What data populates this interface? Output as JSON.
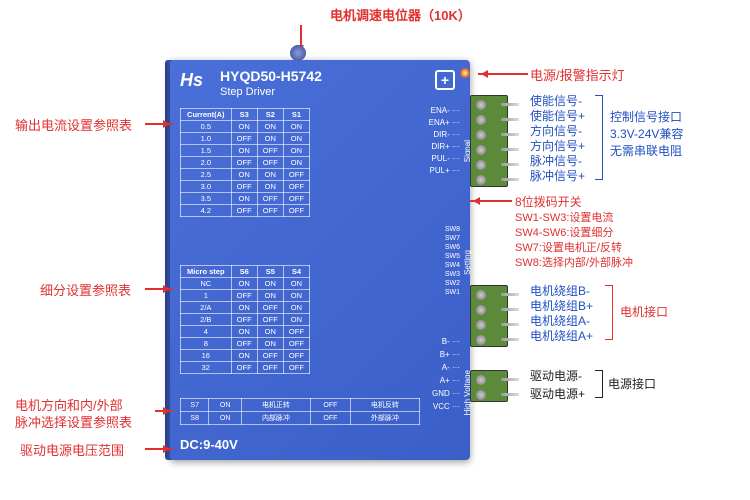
{
  "header": {
    "top_label": "电机调速电位器（10K）",
    "model": "HYQD50-H5742",
    "subtitle": "Step Driver",
    "logo": "Hs",
    "plus": "+"
  },
  "left_callouts": {
    "current_table": "输出电流设置参照表",
    "micro_table": "细分设置参照表",
    "dir_table_l1": "电机方向和内/外部",
    "dir_table_l2": "脉冲选择设置参照表",
    "dc_range": "驱动电源电压范围"
  },
  "right_callouts": {
    "led": "电源/报警指示灯",
    "ena_n": "使能信号-",
    "ena_p": "使能信号+",
    "dir_n": "方向信号-",
    "dir_p": "方向信号+",
    "pul_n": "脉冲信号-",
    "pul_p": "脉冲信号+",
    "ctrl_header": "控制信号接口",
    "ctrl_l2": "3.3V-24V兼容",
    "ctrl_l3": "无需串联电阻",
    "dip": "8位拨码开关",
    "sw13": "SW1-SW3:设置电流",
    "sw46": "SW4-SW6:设置细分",
    "sw7": "SW7:设置电机正/反转",
    "sw8": "SW8:选择内部/外部脉冲",
    "bn": "电机绕组B-",
    "bp": "电机绕组B+",
    "an": "电机绕组A-",
    "ap": "电机绕组A+",
    "motor_port": "电机接口",
    "pwr_n": "驱动电源-",
    "pwr_p": "驱动电源+",
    "pwr_port": "电源接口"
  },
  "current_table": {
    "headers": [
      "Current(A)",
      "S3",
      "S2",
      "S1"
    ],
    "rows": [
      [
        "0.5",
        "ON",
        "ON",
        "ON"
      ],
      [
        "1.0",
        "OFF",
        "ON",
        "ON"
      ],
      [
        "1.5",
        "ON",
        "OFF",
        "ON"
      ],
      [
        "2.0",
        "OFF",
        "OFF",
        "ON"
      ],
      [
        "2.5",
        "ON",
        "ON",
        "OFF"
      ],
      [
        "3.0",
        "OFF",
        "ON",
        "OFF"
      ],
      [
        "3.5",
        "ON",
        "OFF",
        "OFF"
      ],
      [
        "4.2",
        "OFF",
        "OFF",
        "OFF"
      ]
    ]
  },
  "micro_table": {
    "headers": [
      "Micro step",
      "S6",
      "S5",
      "S4"
    ],
    "rows": [
      [
        "NC",
        "ON",
        "ON",
        "ON"
      ],
      [
        "1",
        "OFF",
        "ON",
        "ON"
      ],
      [
        "2/A",
        "ON",
        "OFF",
        "ON"
      ],
      [
        "2/B",
        "OFF",
        "OFF",
        "ON"
      ],
      [
        "4",
        "ON",
        "ON",
        "OFF"
      ],
      [
        "8",
        "OFF",
        "ON",
        "OFF"
      ],
      [
        "16",
        "ON",
        "OFF",
        "OFF"
      ],
      [
        "32",
        "OFF",
        "OFF",
        "OFF"
      ]
    ]
  },
  "dir_table": {
    "rows": [
      [
        "S7",
        "ON",
        "电机正转",
        "OFF",
        "电机反转"
      ],
      [
        "S8",
        "ON",
        "内部脉冲",
        "OFF",
        "外部脉冲"
      ]
    ]
  },
  "dc": "DC:9-40V",
  "pins_top": [
    "ENA-",
    "ENA+",
    "DIR-",
    "DIR+",
    "PUL-",
    "PUL+"
  ],
  "pins_mid": [
    "SW8",
    "SW7",
    "SW6",
    "SW5",
    "SW4",
    "SW3",
    "SW2",
    "SW1"
  ],
  "pins_bot": [
    "B-",
    "B+",
    "A-",
    "A+",
    "GND",
    "VCC"
  ],
  "colors": {
    "device": "#4a6fd8",
    "callout_red": "#e03030",
    "callout_blue": "#2050c0",
    "connector": "#5a8a3a"
  }
}
